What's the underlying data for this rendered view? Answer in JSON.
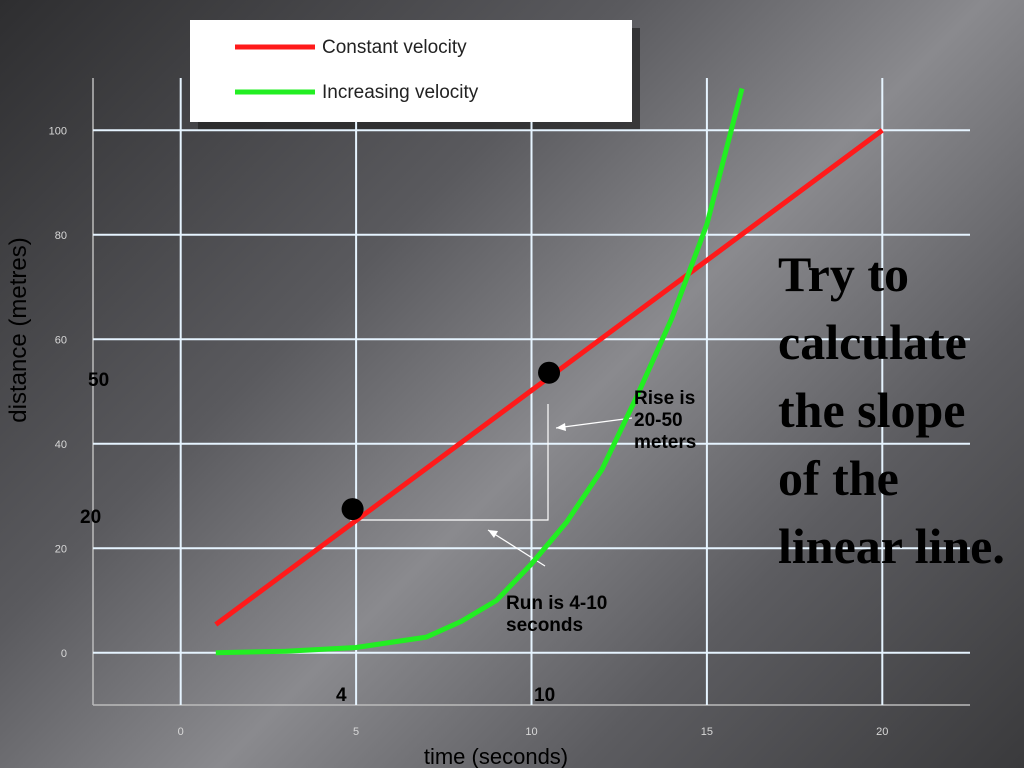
{
  "chart_data": {
    "type": "line",
    "x_label": "time (seconds)",
    "y_label": "distance (metres)",
    "xlim": [
      -2.5,
      22.5
    ],
    "ylim": [
      -10,
      110
    ],
    "xticks": [
      0,
      5,
      10,
      15,
      20
    ],
    "yticks": [
      0,
      20,
      40,
      60,
      80,
      100
    ],
    "grid": true,
    "series": [
      {
        "name": "Constant velocity",
        "color": "#ff1a1a",
        "x": [
          1,
          20
        ],
        "values": [
          5.4,
          100
        ]
      },
      {
        "name": "Increasing velocity",
        "color": "#22ee22",
        "x": [
          1,
          3,
          5,
          7,
          8,
          9,
          10,
          11,
          12,
          13,
          14,
          15,
          16
        ],
        "values": [
          0,
          0.3,
          1,
          3,
          6,
          10,
          17,
          25,
          35,
          49,
          64,
          82,
          108
        ]
      }
    ],
    "highlight_points": {
      "x": [
        4.9,
        10.5
      ],
      "values": [
        27.5,
        53.6
      ]
    },
    "annotations": [
      "50",
      "20",
      "4",
      "10",
      "Rise is 20-50 meters",
      "Run is 4-10 seconds"
    ],
    "slide_text": "Try to calculate the slope of the linear line."
  }
}
